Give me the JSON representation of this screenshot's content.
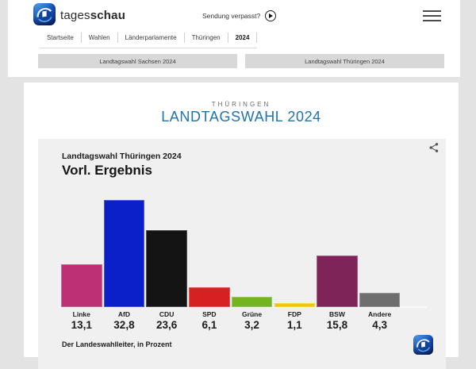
{
  "header": {
    "brand": {
      "regular": "tages",
      "bold": "schau"
    },
    "sendung_verpasst_label": "Sendung verpasst?",
    "breadcrumbs": [
      "Startseite",
      "Wahlen",
      "Länderparlamente",
      "Thüringen",
      "2024"
    ]
  },
  "quick_links": [
    "Landtagswahl Sachsen 2024",
    "Landtagswahl Thüringen 2024"
  ],
  "page": {
    "kicker": "THÜRINGEN",
    "title": "LANDTAGSWAHL 2024"
  },
  "chart_data": {
    "type": "bar",
    "title": "Landtagswahl Thüringen 2024",
    "subtitle": "Vorl. Ergebnis",
    "source": "Der Landeswahlleiter, in Prozent",
    "unit": "Prozent",
    "categories": [
      "Linke",
      "AfD",
      "CDU",
      "SPD",
      "Grüne",
      "FDP",
      "BSW",
      "Andere"
    ],
    "values": [
      13.1,
      32.8,
      23.6,
      6.1,
      3.2,
      1.1,
      15.8,
      4.3
    ],
    "value_labels": [
      "13,1",
      "32,8",
      "23,6",
      "6,1",
      "3,2",
      "1,1",
      "15,8",
      "4,3"
    ],
    "colors": [
      "#be3075",
      "#0b20c8",
      "#141414",
      "#d62021",
      "#74b421",
      "#f6c500",
      "#7e2459",
      "#6e6e6e"
    ],
    "ylim": [
      0,
      35
    ],
    "grid": false,
    "legend": "none"
  },
  "icons": {
    "hamburger": "menu",
    "play": "play-circle",
    "share": "share-nodes",
    "logo": "tagesschau-globe"
  },
  "colors": {
    "accent_blue": "#2173ac",
    "page_bg": "#e3e3e3",
    "chart_bg": "#f0f0f0",
    "button_bg": "#d8d8d8"
  }
}
